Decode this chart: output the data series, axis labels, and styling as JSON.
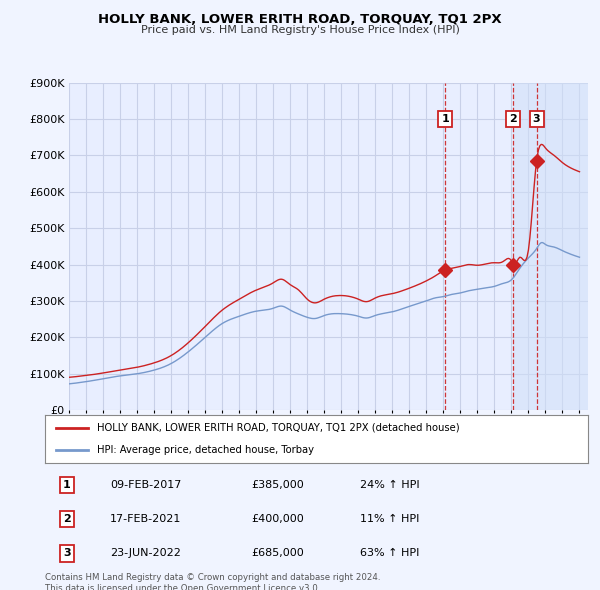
{
  "title": "HOLLY BANK, LOWER ERITH ROAD, TORQUAY, TQ1 2PX",
  "subtitle": "Price paid vs. HM Land Registry's House Price Index (HPI)",
  "ylim": [
    0,
    900000
  ],
  "xlim_start": 1995.0,
  "xlim_end": 2025.5,
  "background_color": "#f0f4ff",
  "plot_bg": "#e8eeff",
  "grid_color": "#c8d0e8",
  "legend_label_red": "HOLLY BANK, LOWER ERITH ROAD, TORQUAY, TQ1 2PX (detached house)",
  "legend_label_blue": "HPI: Average price, detached house, Torbay",
  "footer": "Contains HM Land Registry data © Crown copyright and database right 2024.\nThis data is licensed under the Open Government Licence v3.0.",
  "sale_events": [
    {
      "num": 1,
      "date": "09-FEB-2017",
      "price": "£385,000",
      "hpi": "24% ↑ HPI",
      "year": 2017.11
    },
    {
      "num": 2,
      "date": "17-FEB-2021",
      "price": "£400,000",
      "hpi": "11% ↑ HPI",
      "year": 2021.12
    },
    {
      "num": 3,
      "date": "23-JUN-2022",
      "price": "£685,000",
      "hpi": "63% ↑ HPI",
      "year": 2022.48
    }
  ],
  "shade_start": 2021.12,
  "red_color": "#cc2222",
  "blue_color": "#7799cc",
  "vline_color": "#cc2222",
  "shade_color": "#d0e0f8"
}
